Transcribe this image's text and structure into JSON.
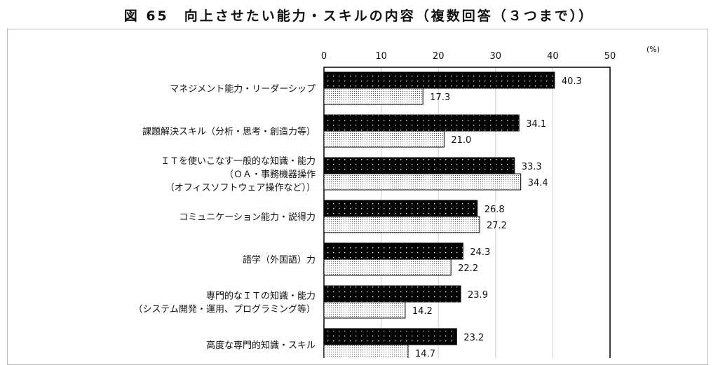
{
  "chart_data": {
    "type": "bar",
    "orientation": "horizontal",
    "title": "図 65　向上させたい能力・スキルの内容（複数回答（３つまで））",
    "unit_label": "(%)",
    "xlim": [
      0,
      50
    ],
    "x_ticks": [
      "0",
      "10",
      "20",
      "30",
      "40",
      "50"
    ],
    "grid": true,
    "categories": [
      [
        "マネジメント能力・リーダーシップ"
      ],
      [
        "課題解決スキル（分析・思考・創造力等）"
      ],
      [
        "ＩＴを使いこなす一般的な知識・能力",
        "（ＯＡ・事務機器操作",
        "（オフィスソフトウェア操作など））"
      ],
      [
        "コミュニケーション能力・説得力"
      ],
      [
        "語学（外国語）力"
      ],
      [
        "専門的なＩＴの知識・能力",
        "（システム開発・運用、プログラミング等）"
      ],
      [
        "高度な専門的知識・スキル"
      ]
    ],
    "series": [
      {
        "style": "black-dotted",
        "color": "#000000",
        "values": [
          40.3,
          34.1,
          33.3,
          26.8,
          24.3,
          23.9,
          23.2
        ],
        "labels": [
          "40.3",
          "34.1",
          "33.3",
          "26.8",
          "24.3",
          "23.9",
          "23.2"
        ]
      },
      {
        "style": "white-dotted",
        "color": "#ffffff",
        "values": [
          17.3,
          21.0,
          34.4,
          27.2,
          22.2,
          14.2,
          14.7
        ],
        "labels": [
          "17.3",
          "21.0",
          "34.4",
          "27.2",
          "22.2",
          "14.2",
          "14.7"
        ]
      }
    ]
  }
}
